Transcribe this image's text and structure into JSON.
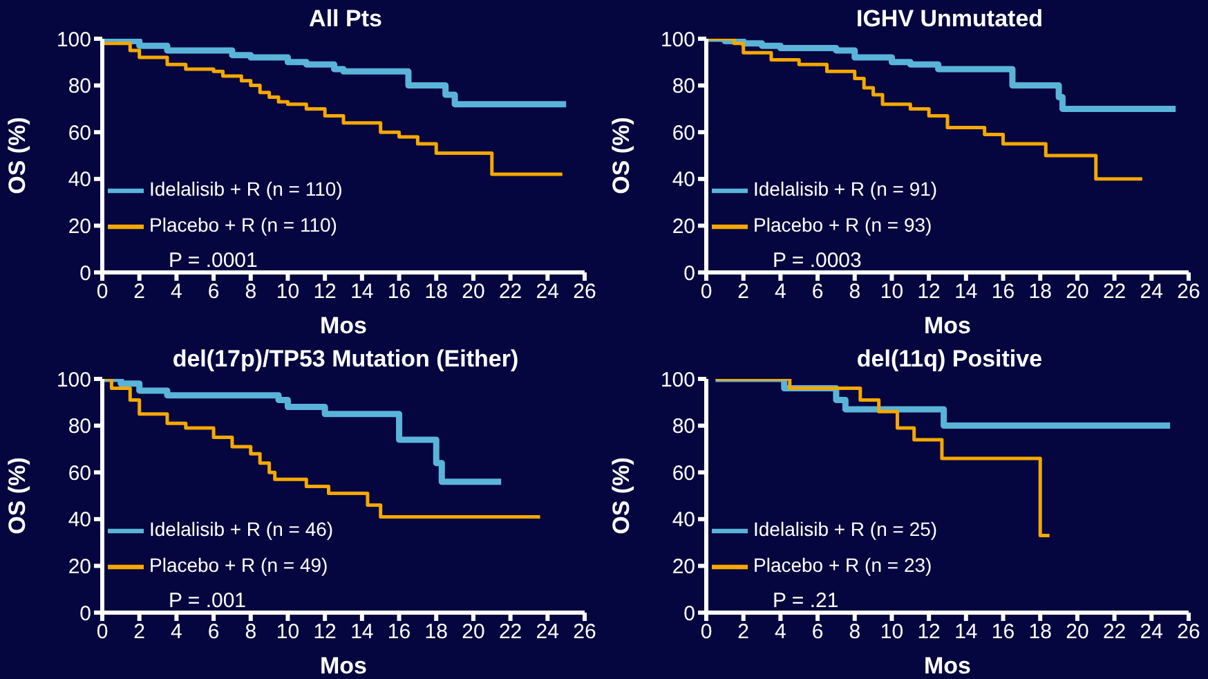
{
  "chart_data": [
    {
      "type": "step",
      "title": "All Pts",
      "xlabel": "Mos",
      "ylabel": "OS (%)",
      "xlim": [
        0,
        26
      ],
      "xticks": [
        0,
        2,
        4,
        6,
        8,
        10,
        12,
        14,
        16,
        18,
        20,
        22,
        24,
        26
      ],
      "ylim": [
        0,
        100
      ],
      "yticks": [
        0,
        20,
        40,
        60,
        80,
        100
      ],
      "grid": false,
      "legend": "left",
      "annotations": [
        "P = .0001"
      ],
      "series": [
        {
          "name": "Idelalisib + R (n = 110)",
          "color": "#5ab4d9",
          "x": [
            0,
            1,
            2,
            3.5,
            7,
            8,
            10,
            11,
            12.5,
            13,
            16.5,
            18.5,
            19,
            25
          ],
          "values": [
            100,
            99,
            97,
            95,
            93,
            92,
            90,
            89,
            87,
            86,
            80,
            76,
            72,
            72
          ]
        },
        {
          "name": "Placebo + R (n = 110)",
          "color": "#f5a800",
          "x": [
            0,
            1.5,
            2,
            3.5,
            4.5,
            6,
            6.5,
            7.5,
            8,
            8.5,
            9,
            9.5,
            10,
            11,
            12,
            13,
            15,
            16,
            17,
            18,
            21,
            24.8
          ],
          "values": [
            98,
            95,
            92,
            89,
            87,
            86,
            84,
            82,
            80,
            77,
            75,
            73,
            72,
            70,
            67,
            64,
            60,
            58,
            55,
            51,
            42,
            42
          ]
        }
      ]
    },
    {
      "type": "step",
      "title": "IGHV Unmutated",
      "xlabel": "Mos",
      "ylabel": "OS (%)",
      "xlim": [
        0,
        26
      ],
      "xticks": [
        0,
        2,
        4,
        6,
        8,
        10,
        12,
        14,
        16,
        18,
        20,
        22,
        24,
        26
      ],
      "ylim": [
        0,
        100
      ],
      "yticks": [
        0,
        20,
        40,
        60,
        80,
        100
      ],
      "grid": false,
      "legend": "left",
      "annotations": [
        "P = .0003"
      ],
      "series": [
        {
          "name": "Idelalisib + R (n = 91)",
          "color": "#5ab4d9",
          "x": [
            0,
            1,
            2,
            3,
            4,
            7,
            8,
            10,
            11,
            12.5,
            16.5,
            19,
            19.2,
            25.3
          ],
          "values": [
            100,
            99,
            98,
            97,
            96,
            95,
            92,
            90,
            89,
            87,
            80,
            75,
            70,
            70
          ]
        },
        {
          "name": "Placebo + R (n = 93)",
          "color": "#f5a800",
          "x": [
            0,
            1.5,
            2,
            3.5,
            5,
            6.5,
            8,
            8.5,
            9,
            9.5,
            11,
            12,
            13,
            15,
            16,
            18.3,
            21,
            23.5
          ],
          "values": [
            100,
            98,
            94,
            91,
            89,
            86,
            83,
            79,
            76,
            72,
            70,
            67,
            62,
            59,
            55,
            50,
            40,
            40
          ]
        }
      ]
    },
    {
      "type": "step",
      "title": "del(17p)/TP53 Mutation (Either)",
      "xlabel": "Mos",
      "ylabel": "OS (%)",
      "xlim": [
        0,
        26
      ],
      "xticks": [
        0,
        2,
        4,
        6,
        8,
        10,
        12,
        14,
        16,
        18,
        20,
        22,
        24,
        26
      ],
      "ylim": [
        0,
        100
      ],
      "yticks": [
        0,
        20,
        40,
        60,
        80,
        100
      ],
      "grid": false,
      "legend": "left",
      "annotations": [
        "P = .001"
      ],
      "series": [
        {
          "name": "Idelalisib + R (n = 46)",
          "color": "#5ab4d9",
          "x": [
            0,
            1,
            2,
            3.5,
            9.5,
            10,
            12,
            16,
            18,
            18.3,
            21.5
          ],
          "values": [
            100,
            98,
            95,
            93,
            91,
            88,
            85,
            74,
            64,
            56,
            56
          ]
        },
        {
          "name": "Placebo + R (n = 49)",
          "color": "#f5a800",
          "x": [
            0,
            0.5,
            1.5,
            2,
            3.5,
            4.5,
            6,
            7,
            8,
            8.5,
            9,
            9.3,
            11,
            12.2,
            14.3,
            15,
            23.6
          ],
          "values": [
            100,
            96,
            91,
            85,
            81,
            79,
            75,
            71,
            68,
            64,
            60,
            57,
            54,
            51,
            46,
            41,
            41
          ]
        }
      ]
    },
    {
      "type": "step",
      "title": "del(11q) Positive",
      "xlabel": "Mos",
      "ylabel": "OS (%)",
      "xlim": [
        0,
        26
      ],
      "xticks": [
        0,
        2,
        4,
        6,
        8,
        10,
        12,
        14,
        16,
        18,
        20,
        22,
        24,
        26
      ],
      "ylim": [
        0,
        100
      ],
      "yticks": [
        0,
        20,
        40,
        60,
        80,
        100
      ],
      "grid": false,
      "legend": "left",
      "annotations": [
        "P = .21"
      ],
      "series": [
        {
          "name": "Idelalisib + R (n = 25)",
          "color": "#5ab4d9",
          "x": [
            0.5,
            4.2,
            7,
            7.5,
            12.8,
            25
          ],
          "values": [
            100,
            96,
            91,
            87,
            80,
            80
          ]
        },
        {
          "name": "Placebo + R (n = 23)",
          "color": "#f5a800",
          "x": [
            0.5,
            4.5,
            8.3,
            9.3,
            10.3,
            11.2,
            12.7,
            18,
            18.5
          ],
          "values": [
            100,
            96,
            91,
            86,
            79,
            74,
            66,
            33,
            33
          ]
        }
      ]
    }
  ]
}
